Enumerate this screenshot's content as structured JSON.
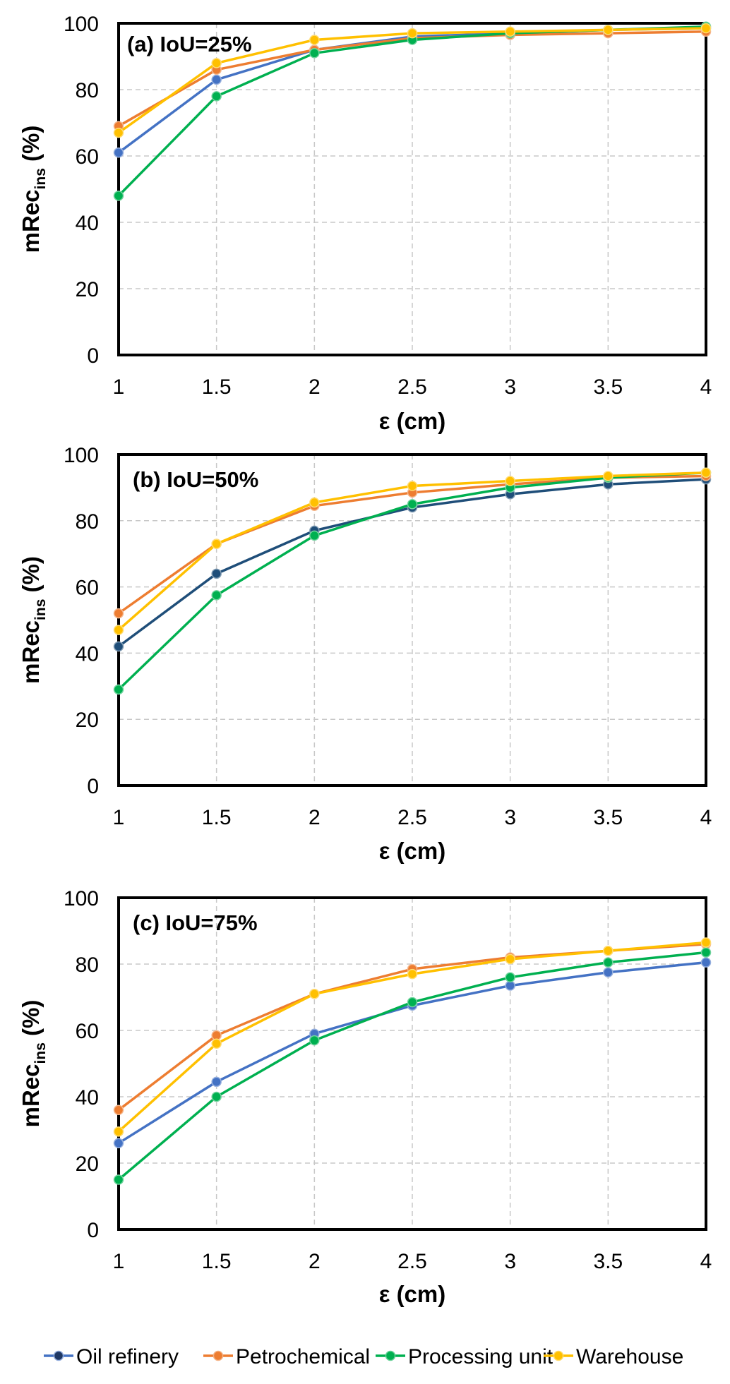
{
  "chart_data": [
    {
      "type": "line",
      "title": "(a) IoU=25%",
      "xlabel": "ε (cm)",
      "ylabel_main": "mRec",
      "ylabel_sub": "ins",
      "ylabel_suffix": "(%)",
      "x": [
        1,
        1.5,
        2,
        2.5,
        3,
        3.5,
        4
      ],
      "x_tick_labels": [
        "1",
        "1.5",
        "2",
        "2.5",
        "3",
        "3.5",
        "4"
      ],
      "y_tick_labels": [
        "0",
        "20",
        "40",
        "60",
        "80",
        "100"
      ],
      "xlim": [
        1,
        4
      ],
      "ylim": [
        0,
        100
      ],
      "grid": true,
      "series": [
        {
          "name": "Oil refinery",
          "color": "#4472C4",
          "values": [
            61,
            83,
            92,
            96,
            97,
            98,
            98.5
          ]
        },
        {
          "name": "Petrochemical",
          "color": "#ED7D31",
          "values": [
            69,
            86,
            92,
            95.5,
            96.5,
            97,
            97.5
          ]
        },
        {
          "name": "Processing unit",
          "color": "#00B050",
          "values": [
            48,
            78,
            91,
            95,
            97,
            98,
            99
          ]
        },
        {
          "name": "Warehouse",
          "color": "#FFC000",
          "values": [
            67,
            88,
            95,
            97,
            97.5,
            98,
            98.5
          ]
        }
      ]
    },
    {
      "type": "line",
      "title": "(b) IoU=50%",
      "xlabel": "ε (cm)",
      "ylabel_main": "mRec",
      "ylabel_sub": "ins",
      "ylabel_suffix": "(%)",
      "x": [
        1,
        1.5,
        2,
        2.5,
        3,
        3.5,
        4
      ],
      "x_tick_labels": [
        "1",
        "1.5",
        "2",
        "2.5",
        "3",
        "3.5",
        "4"
      ],
      "y_tick_labels": [
        "0",
        "20",
        "40",
        "60",
        "80",
        "100"
      ],
      "xlim": [
        1,
        4
      ],
      "ylim": [
        0,
        100
      ],
      "grid": true,
      "series": [
        {
          "name": "Oil refinery",
          "color": "#1F4E79",
          "values": [
            42,
            64,
            77,
            84,
            88,
            91,
            92.5
          ]
        },
        {
          "name": "Petrochemical",
          "color": "#ED7D31",
          "values": [
            52,
            73,
            84.5,
            88.5,
            91,
            93,
            93.5
          ]
        },
        {
          "name": "Processing unit",
          "color": "#00B050",
          "values": [
            29,
            57.5,
            75.5,
            85,
            90,
            93,
            94.5
          ]
        },
        {
          "name": "Warehouse",
          "color": "#FFC000",
          "values": [
            47,
            73,
            85.5,
            90.5,
            92,
            93.5,
            94.5
          ]
        }
      ]
    },
    {
      "type": "line",
      "title": "(c) IoU=75%",
      "xlabel": "ε (cm)",
      "ylabel_main": "mRec",
      "ylabel_sub": "ins",
      "ylabel_suffix": "(%)",
      "x": [
        1,
        1.5,
        2,
        2.5,
        3,
        3.5,
        4
      ],
      "x_tick_labels": [
        "1",
        "1.5",
        "2",
        "2.5",
        "3",
        "3.5",
        "4"
      ],
      "y_tick_labels": [
        "0",
        "20",
        "40",
        "60",
        "80",
        "100"
      ],
      "xlim": [
        1,
        4
      ],
      "ylim": [
        0,
        100
      ],
      "grid": true,
      "series": [
        {
          "name": "Oil refinery",
          "color": "#4472C4",
          "values": [
            26,
            44.5,
            59,
            67.5,
            73.5,
            77.5,
            80.5
          ]
        },
        {
          "name": "Petrochemical",
          "color": "#ED7D31",
          "values": [
            36,
            58.5,
            71,
            78.5,
            82,
            84,
            86
          ]
        },
        {
          "name": "Processing unit",
          "color": "#00B050",
          "values": [
            15,
            40,
            57,
            68.5,
            76,
            80.5,
            83.5
          ]
        },
        {
          "name": "Warehouse",
          "color": "#FFC000",
          "values": [
            29.5,
            56,
            71,
            77,
            81.5,
            84,
            86.5
          ]
        }
      ]
    }
  ],
  "legend": {
    "position": "bottom",
    "items": [
      {
        "label": "Oil refinery",
        "line_color": "#4472C4",
        "marker_color": "#1F3864"
      },
      {
        "label": "Petrochemical",
        "line_color": "#ED7D31",
        "marker_color": "#ED7D31"
      },
      {
        "label": "Processing unit",
        "line_color": "#00B050",
        "marker_color": "#00B050"
      },
      {
        "label": "Warehouse",
        "line_color": "#FFC000",
        "marker_color": "#FFC000"
      }
    ]
  }
}
